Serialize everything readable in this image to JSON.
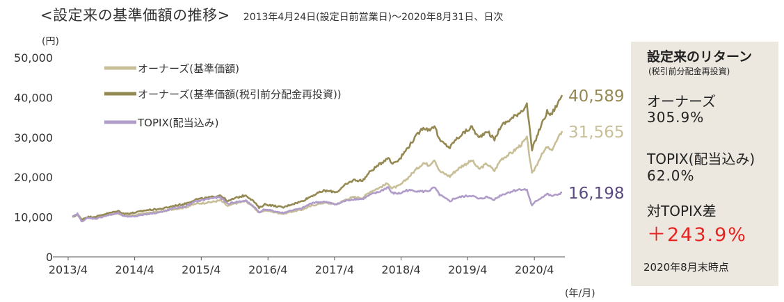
{
  "header": {
    "title": "<設定来の基準価額の推移>",
    "subtitle": "2013年4月24日(設定日前営業日)～2020年8月31日、日次"
  },
  "chart_data": {
    "type": "line",
    "y_unit": "(円)",
    "x_unit": "(年/月)",
    "ylim": [
      0,
      50000
    ],
    "y_ticks": [
      0,
      10000,
      20000,
      30000,
      40000,
      50000
    ],
    "y_tick_labels": [
      "0",
      "10,000",
      "20,000",
      "30,000",
      "40,000",
      "50,000"
    ],
    "x_range": [
      "2013-04-24",
      "2020-08-31"
    ],
    "x_ticks": [
      "2013-04",
      "2014-04",
      "2015-04",
      "2016-04",
      "2017-04",
      "2018-04",
      "2019-04",
      "2020-04"
    ],
    "x_tick_labels": [
      "2013/4",
      "2014/4",
      "2015/4",
      "2016/4",
      "2017/4",
      "2018/4",
      "2019/4",
      "2020/4"
    ],
    "grid": false,
    "legend_position": "top-left",
    "series": [
      {
        "name": "オーナーズ(基準価額)",
        "color": "#c8bf98",
        "end_label": "31,565",
        "points": [
          [
            "2013-04-24",
            10000
          ],
          [
            "2013-05-22",
            10600
          ],
          [
            "2013-06-13",
            9300
          ],
          [
            "2013-07-15",
            9900
          ],
          [
            "2013-09-01",
            9800
          ],
          [
            "2013-10-15",
            10300
          ],
          [
            "2014-01-01",
            10900
          ],
          [
            "2014-02-05",
            10200
          ],
          [
            "2014-04-01",
            10500
          ],
          [
            "2014-06-01",
            11000
          ],
          [
            "2014-09-01",
            11400
          ],
          [
            "2014-11-01",
            12000
          ],
          [
            "2015-01-01",
            12400
          ],
          [
            "2015-03-01",
            13300
          ],
          [
            "2015-06-01",
            13800
          ],
          [
            "2015-07-15",
            14200
          ],
          [
            "2015-08-25",
            12700
          ],
          [
            "2015-10-01",
            13400
          ],
          [
            "2015-12-01",
            14000
          ],
          [
            "2016-01-15",
            12500
          ],
          [
            "2016-02-12",
            11000
          ],
          [
            "2016-03-15",
            11700
          ],
          [
            "2016-06-24",
            10800
          ],
          [
            "2016-08-01",
            11300
          ],
          [
            "2016-10-01",
            11800
          ],
          [
            "2016-12-01",
            12900
          ],
          [
            "2017-02-01",
            13600
          ],
          [
            "2017-04-14",
            13200
          ],
          [
            "2017-06-01",
            14400
          ],
          [
            "2017-07-15",
            15000
          ],
          [
            "2017-09-01",
            14800
          ],
          [
            "2017-10-15",
            16400
          ],
          [
            "2017-12-01",
            17300
          ],
          [
            "2018-01-20",
            18500
          ],
          [
            "2018-02-09",
            17200
          ],
          [
            "2018-03-25",
            17900
          ],
          [
            "2018-05-01",
            19500
          ],
          [
            "2018-06-15",
            21600
          ],
          [
            "2018-08-01",
            23600
          ],
          [
            "2018-09-01",
            23000
          ],
          [
            "2018-10-01",
            24500
          ],
          [
            "2018-10-29",
            21500
          ],
          [
            "2018-12-25",
            20200
          ],
          [
            "2019-01-15",
            21200
          ],
          [
            "2019-03-01",
            22800
          ],
          [
            "2019-04-25",
            24200
          ],
          [
            "2019-06-01",
            22000
          ],
          [
            "2019-07-15",
            23400
          ],
          [
            "2019-08-26",
            21600
          ],
          [
            "2019-10-01",
            24500
          ],
          [
            "2019-12-01",
            26200
          ],
          [
            "2020-01-20",
            28200
          ],
          [
            "2020-02-20",
            29800
          ],
          [
            "2020-03-19",
            20800
          ],
          [
            "2020-04-10",
            22800
          ],
          [
            "2020-05-01",
            24800
          ],
          [
            "2020-06-10",
            27600
          ],
          [
            "2020-07-01",
            26600
          ],
          [
            "2020-08-01",
            29000
          ],
          [
            "2020-08-31",
            31565
          ]
        ]
      },
      {
        "name": "オーナーズ(基準価額(税引前分配金再投資))",
        "color": "#958953",
        "end_label": "40,589",
        "points": [
          [
            "2013-04-24",
            10000
          ],
          [
            "2013-05-22",
            10700
          ],
          [
            "2013-06-13",
            9400
          ],
          [
            "2013-07-15",
            10000
          ],
          [
            "2013-09-01",
            10100
          ],
          [
            "2013-10-15",
            10700
          ],
          [
            "2014-01-01",
            11500
          ],
          [
            "2014-02-05",
            10800
          ],
          [
            "2014-04-01",
            11100
          ],
          [
            "2014-06-01",
            11700
          ],
          [
            "2014-09-01",
            12100
          ],
          [
            "2014-11-01",
            12800
          ],
          [
            "2015-01-01",
            13300
          ],
          [
            "2015-03-01",
            14400
          ],
          [
            "2015-06-01",
            15000
          ],
          [
            "2015-07-15",
            15500
          ],
          [
            "2015-08-25",
            13900
          ],
          [
            "2015-10-01",
            14700
          ],
          [
            "2015-12-01",
            15500
          ],
          [
            "2016-01-15",
            13900
          ],
          [
            "2016-02-12",
            12300
          ],
          [
            "2016-03-15",
            13200
          ],
          [
            "2016-06-24",
            12400
          ],
          [
            "2016-08-01",
            13100
          ],
          [
            "2016-10-01",
            13900
          ],
          [
            "2016-12-01",
            15400
          ],
          [
            "2017-02-01",
            16600
          ],
          [
            "2017-04-14",
            16300
          ],
          [
            "2017-06-01",
            18100
          ],
          [
            "2017-07-15",
            19300
          ],
          [
            "2017-09-01",
            19100
          ],
          [
            "2017-10-15",
            21500
          ],
          [
            "2017-12-01",
            23100
          ],
          [
            "2018-01-20",
            25000
          ],
          [
            "2018-02-09",
            23400
          ],
          [
            "2018-03-25",
            24600
          ],
          [
            "2018-05-01",
            27000
          ],
          [
            "2018-06-15",
            29800
          ],
          [
            "2018-08-01",
            32600
          ],
          [
            "2018-09-01",
            31800
          ],
          [
            "2018-10-01",
            33000
          ],
          [
            "2018-10-29",
            29200
          ],
          [
            "2018-12-25",
            27400
          ],
          [
            "2019-01-15",
            28900
          ],
          [
            "2019-03-01",
            30800
          ],
          [
            "2019-04-25",
            32600
          ],
          [
            "2019-06-01",
            29800
          ],
          [
            "2019-07-15",
            31700
          ],
          [
            "2019-08-26",
            29400
          ],
          [
            "2019-10-01",
            32900
          ],
          [
            "2019-12-01",
            34800
          ],
          [
            "2020-01-20",
            36600
          ],
          [
            "2020-02-20",
            38200
          ],
          [
            "2020-03-19",
            26800
          ],
          [
            "2020-04-10",
            29600
          ],
          [
            "2020-05-01",
            32200
          ],
          [
            "2020-06-10",
            36400
          ],
          [
            "2020-07-01",
            35600
          ],
          [
            "2020-08-01",
            38000
          ],
          [
            "2020-08-31",
            40589
          ]
        ]
      },
      {
        "name": "TOPIX(配当込み)",
        "color": "#b09cc8",
        "end_label": "16,198",
        "end_label_color": "#5b4a80",
        "points": [
          [
            "2013-04-24",
            10000
          ],
          [
            "2013-05-22",
            10800
          ],
          [
            "2013-06-13",
            8900
          ],
          [
            "2013-07-15",
            9700
          ],
          [
            "2013-09-01",
            9600
          ],
          [
            "2013-10-15",
            10200
          ],
          [
            "2014-01-01",
            11000
          ],
          [
            "2014-02-05",
            10100
          ],
          [
            "2014-04-01",
            10200
          ],
          [
            "2014-06-01",
            10700
          ],
          [
            "2014-09-01",
            11300
          ],
          [
            "2014-11-01",
            12200
          ],
          [
            "2015-01-01",
            12600
          ],
          [
            "2015-03-01",
            13900
          ],
          [
            "2015-06-01",
            14800
          ],
          [
            "2015-07-15",
            14900
          ],
          [
            "2015-08-25",
            13300
          ],
          [
            "2015-10-01",
            13700
          ],
          [
            "2015-12-01",
            14100
          ],
          [
            "2016-01-15",
            12600
          ],
          [
            "2016-02-12",
            11200
          ],
          [
            "2016-03-15",
            11900
          ],
          [
            "2016-06-24",
            11000
          ],
          [
            "2016-08-01",
            11600
          ],
          [
            "2016-10-01",
            12100
          ],
          [
            "2016-12-01",
            13600
          ],
          [
            "2017-02-01",
            13800
          ],
          [
            "2017-04-14",
            13200
          ],
          [
            "2017-06-01",
            14100
          ],
          [
            "2017-07-15",
            14500
          ],
          [
            "2017-09-01",
            14500
          ],
          [
            "2017-10-15",
            15600
          ],
          [
            "2017-12-01",
            16300
          ],
          [
            "2018-01-20",
            17500
          ],
          [
            "2018-02-09",
            16000
          ],
          [
            "2018-03-25",
            15900
          ],
          [
            "2018-05-01",
            16700
          ],
          [
            "2018-06-15",
            16600
          ],
          [
            "2018-08-01",
            16400
          ],
          [
            "2018-09-01",
            16600
          ],
          [
            "2018-10-01",
            17400
          ],
          [
            "2018-10-29",
            15600
          ],
          [
            "2018-12-25",
            13900
          ],
          [
            "2019-01-15",
            14600
          ],
          [
            "2019-03-01",
            15100
          ],
          [
            "2019-04-25",
            15400
          ],
          [
            "2019-06-01",
            14500
          ],
          [
            "2019-07-15",
            15000
          ],
          [
            "2019-08-26",
            14400
          ],
          [
            "2019-10-01",
            15500
          ],
          [
            "2019-12-01",
            16500
          ],
          [
            "2020-01-20",
            17000
          ],
          [
            "2020-02-20",
            16800
          ],
          [
            "2020-03-19",
            12800
          ],
          [
            "2020-04-10",
            14000
          ],
          [
            "2020-05-01",
            14600
          ],
          [
            "2020-06-10",
            15800
          ],
          [
            "2020-07-01",
            15300
          ],
          [
            "2020-08-01",
            15500
          ],
          [
            "2020-08-31",
            16198
          ]
        ]
      }
    ]
  },
  "panel": {
    "title": "設定来のリターン",
    "subtitle": "(税引前分配金再投資)",
    "owners_label": "オーナーズ",
    "owners_value": "305.9%",
    "topix_label": "TOPIX(配当込み)",
    "topix_value": "62.0%",
    "diff_label": "対TOPIX差",
    "diff_value": "＋243.9%",
    "as_of": "2020年8月末時点"
  }
}
